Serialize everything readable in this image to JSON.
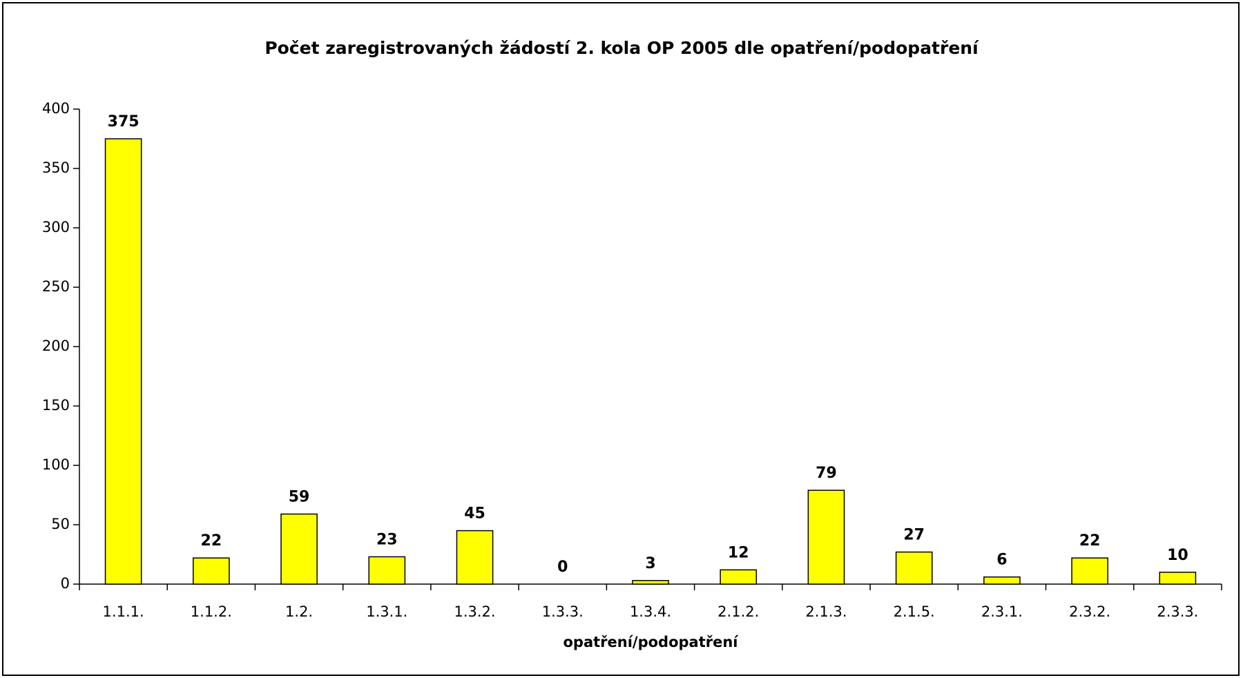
{
  "chart_data": {
    "type": "bar",
    "title": "Počet zaregistrovaných žádostí 2. kola OP 2005 dle opatření/podopatření",
    "x_label": "opatření/podopatření",
    "categories": [
      "1.1.1.",
      "1.1.2.",
      "1.2.",
      "1.3.1.",
      "1.3.2.",
      "1.3.3.",
      "1.3.4.",
      "2.1.2.",
      "2.1.3.",
      "2.1.5.",
      "2.3.1.",
      "2.3.2.",
      "2.3.3."
    ],
    "values": [
      375,
      22,
      59,
      23,
      45,
      0,
      3,
      12,
      79,
      27,
      6,
      22,
      10
    ],
    "color": "#ffff00",
    "ylim": [
      0,
      400
    ],
    "yticks": [
      0,
      50,
      100,
      150,
      200,
      250,
      300,
      350,
      400
    ],
    "grid": false
  }
}
